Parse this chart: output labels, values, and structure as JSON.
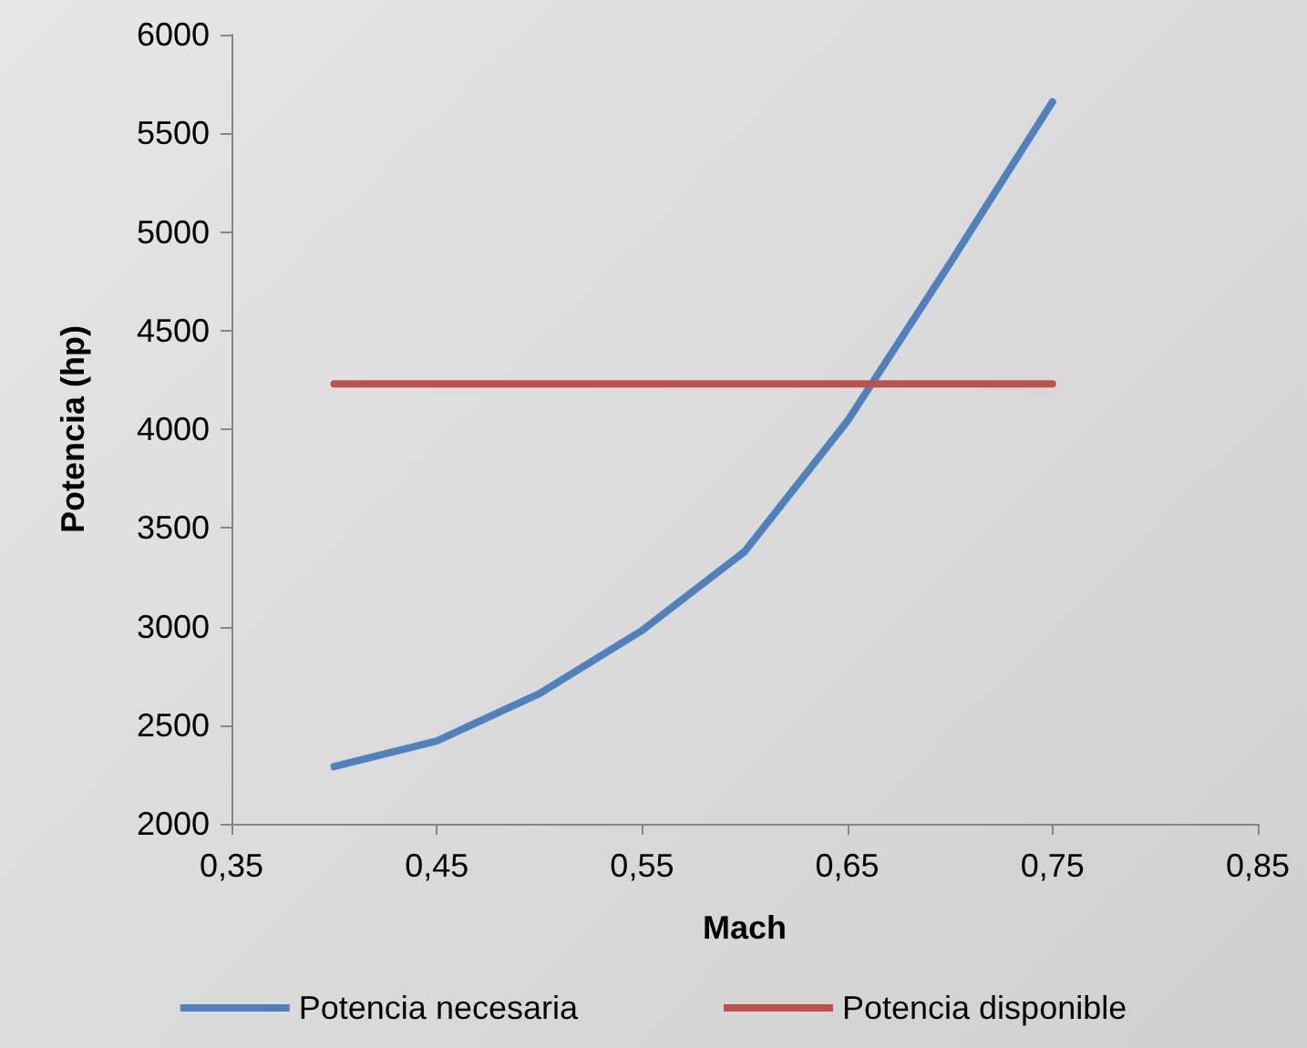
{
  "chart_data": {
    "type": "line",
    "xlabel": "Mach",
    "ylabel": "Potencia (hp)",
    "x": [
      0.4,
      0.45,
      0.5,
      0.55,
      0.6,
      0.65,
      0.7,
      0.75
    ],
    "series": [
      {
        "name": "Potencia necesaria",
        "color": "#4f81bd",
        "values": [
          2290,
          2420,
          2660,
          2980,
          3380,
          4040,
          4840,
          5660
        ]
      },
      {
        "name": "Potencia disponible",
        "color": "#c0504d",
        "values": [
          4230,
          4230,
          4230,
          4230,
          4230,
          4230,
          4230,
          4230
        ]
      }
    ],
    "xlim": [
      0.35,
      0.85
    ],
    "xticks": [
      {
        "value": 0.35,
        "label": "0,35"
      },
      {
        "value": 0.45,
        "label": "0,45"
      },
      {
        "value": 0.55,
        "label": "0,55"
      },
      {
        "value": 0.65,
        "label": "0,65"
      },
      {
        "value": 0.75,
        "label": "0,75"
      },
      {
        "value": 0.85,
        "label": "0,85"
      }
    ],
    "ylim": [
      2000,
      6000
    ],
    "yticks": [
      2000,
      2500,
      3000,
      3500,
      4000,
      4500,
      5000,
      5500,
      6000
    ],
    "grid": false,
    "legend": "bottom",
    "marker": "none",
    "line_style": "solid"
  }
}
